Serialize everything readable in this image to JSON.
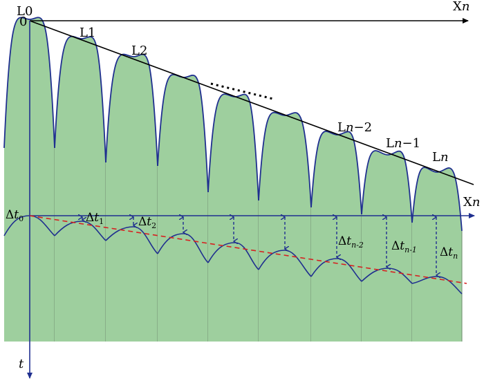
{
  "axes": {
    "x_top_label": "X",
    "x_top_italic": "n",
    "x_mid_label": "X",
    "x_mid_italic": "n",
    "t_label": "t",
    "origin_label": "0"
  },
  "peak_labels": {
    "L0": "L0",
    "L1": "L1",
    "L2": "L2",
    "Ln2_prefix": "L",
    "Ln2_italic": "n",
    "Ln2_suffix": "−2",
    "Ln1_prefix": "L",
    "Ln1_italic": "n",
    "Ln1_suffix": "−1",
    "Ln_prefix": "L",
    "Ln_italic": "n"
  },
  "delta_labels": {
    "symbol": "Δ",
    "var": "t",
    "d0": "0",
    "d1": "1",
    "d2": "2",
    "dn2": "n-2",
    "dn1": "n-1",
    "dn": "n"
  },
  "colors": {
    "fill": "#9ecf9e",
    "curve": "#1f2f8f",
    "axis": "#1f2f8f",
    "trend": "#d62020",
    "envelope": "#000000"
  }
}
